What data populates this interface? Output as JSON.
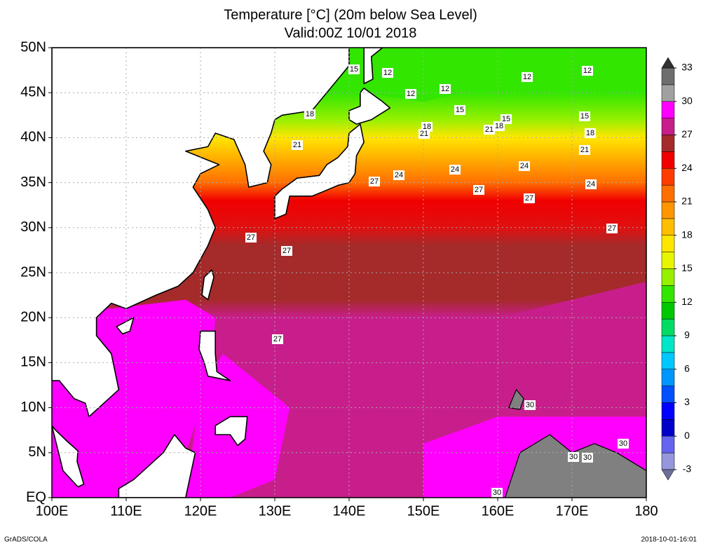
{
  "map": {
    "title": "Temperature [°C] (20m below Sea Level)",
    "subtitle": "Valid:00Z 10/01 2018",
    "xlim": [
      100,
      180
    ],
    "ylim": [
      0,
      50
    ],
    "xticks": [
      {
        "value": 100,
        "label": "100E"
      },
      {
        "value": 110,
        "label": "110E"
      },
      {
        "value": 120,
        "label": "120E"
      },
      {
        "value": 130,
        "label": "130E"
      },
      {
        "value": 140,
        "label": "140E"
      },
      {
        "value": 150,
        "label": "150E"
      },
      {
        "value": 160,
        "label": "160E"
      },
      {
        "value": 170,
        "label": "170E"
      },
      {
        "value": 180,
        "label": "180"
      }
    ],
    "yticks": [
      {
        "value": 0,
        "label": "EQ"
      },
      {
        "value": 5,
        "label": "5N"
      },
      {
        "value": 10,
        "label": "10N"
      },
      {
        "value": 15,
        "label": "15N"
      },
      {
        "value": 20,
        "label": "20N"
      },
      {
        "value": 25,
        "label": "25N"
      },
      {
        "value": 30,
        "label": "30N"
      },
      {
        "value": 35,
        "label": "35N"
      },
      {
        "value": 40,
        "label": "40N"
      },
      {
        "value": 45,
        "label": "45N"
      },
      {
        "value": 50,
        "label": "50N"
      }
    ],
    "grid": true,
    "contour_labels": [
      15,
      12,
      12,
      12,
      12,
      12,
      15,
      15,
      15,
      18,
      18,
      21,
      21,
      18,
      18,
      21,
      21,
      24,
      24,
      24,
      24,
      27,
      27,
      27,
      27,
      27,
      27,
      27,
      30,
      30,
      30,
      30,
      30
    ],
    "colorbar": {
      "lim": [
        -3,
        33
      ],
      "ticks": [
        -3,
        0,
        3,
        6,
        9,
        12,
        15,
        18,
        21,
        24,
        27,
        30,
        33
      ],
      "colors": [
        "#9696dc",
        "#6464f0",
        "#0000c8",
        "#0000ff",
        "#0050ff",
        "#0096ff",
        "#00c8ff",
        "#00e6c8",
        "#00dc64",
        "#00c800",
        "#32e600",
        "#96f000",
        "#e6f500",
        "#ffe600",
        "#ffbe00",
        "#ff9600",
        "#ff6e00",
        "#ff3c00",
        "#f00000",
        "#a52a2a",
        "#c81e8c",
        "#ff00ff",
        "#a0a0a0",
        "#6e6e6e"
      ],
      "over_color": "#303030",
      "under_color": "#6e6e9a"
    },
    "footer_left": "GrADS/COLA",
    "footer_right": "2018-10-01-16:01"
  }
}
